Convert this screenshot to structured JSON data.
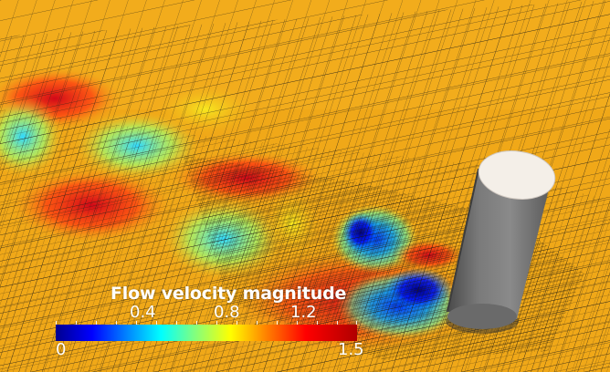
{
  "legend": {
    "title": "Flow velocity magnitude",
    "ticks": [
      "0.4",
      "0.8",
      "1.2"
    ],
    "min_label": "0",
    "max_label": "1.5"
  },
  "scene": {
    "subject": "cylinder-in-flow",
    "ground_color": "#f0a818",
    "mesh_color": "#2a2418",
    "cylinder_color": "#707070",
    "cylinder_top_color": "#f4efe8"
  },
  "colormap": [
    "#00008f",
    "#0000ff",
    "#0088ff",
    "#00ffff",
    "#80ff80",
    "#ffff00",
    "#ff8000",
    "#ff0000",
    "#b00000"
  ]
}
